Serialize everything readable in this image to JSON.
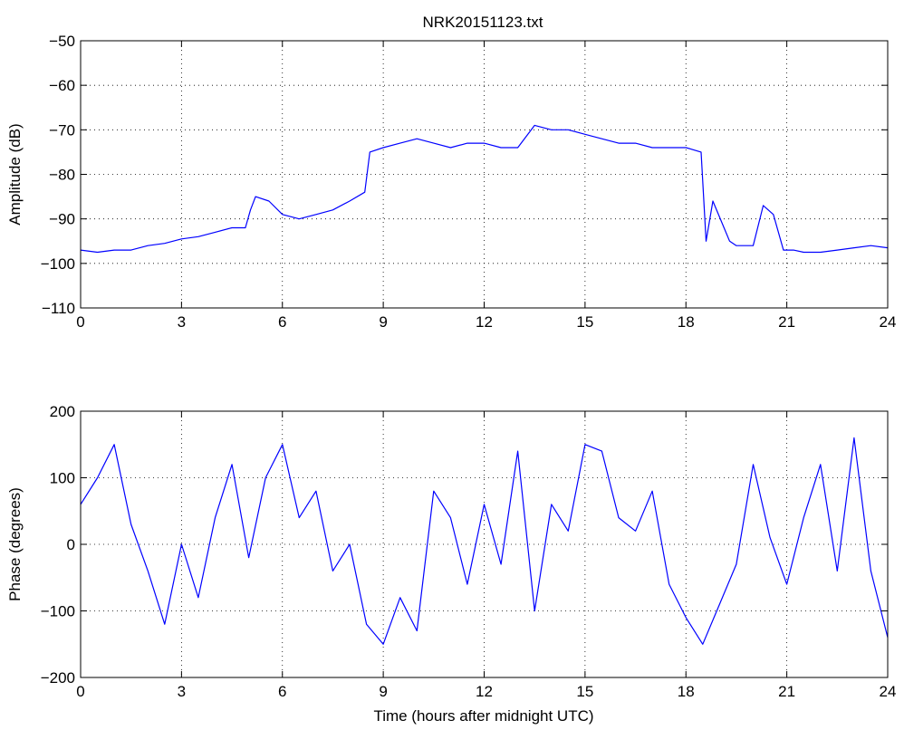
{
  "chart_data": [
    {
      "type": "line",
      "title": "NRK20151123.txt",
      "xlabel": "",
      "ylabel": "Amplitude (dB)",
      "xlim": [
        0,
        24
      ],
      "ylim": [
        -110,
        -50
      ],
      "xticks": [
        0,
        3,
        6,
        9,
        12,
        15,
        18,
        21,
        24
      ],
      "yticks": [
        -110,
        -100,
        -90,
        -80,
        -70,
        -60,
        -50
      ],
      "xtick_labels": [
        "0",
        "3",
        "6",
        "9",
        "12",
        "15",
        "18",
        "21",
        "24"
      ],
      "ytick_labels": [
        "−110",
        "−100",
        "−90",
        "−80",
        "−70",
        "−60",
        "−50"
      ],
      "grid": true,
      "line_color": "#0000ff",
      "series": [
        {
          "x": [
            0,
            0.5,
            1.0,
            1.5,
            2.0,
            2.5,
            3.0,
            3.5,
            4.0,
            4.5,
            4.9,
            5.05,
            5.2,
            5.6,
            6.0,
            6.5,
            7.0,
            7.5,
            8.0,
            8.45,
            8.6,
            9.0,
            9.5,
            10.0,
            10.5,
            11.0,
            11.5,
            12.0,
            12.5,
            13.0,
            13.5,
            14.0,
            14.5,
            15.0,
            15.5,
            16.0,
            16.5,
            17.0,
            17.5,
            18.0,
            18.45,
            18.6,
            18.8,
            19.3,
            19.5,
            20.0,
            20.3,
            20.6,
            20.9,
            21.2,
            21.5,
            22.0,
            22.5,
            23.0,
            23.5,
            24.0
          ],
          "values": [
            -97,
            -97.5,
            -97,
            -97,
            -96,
            -95.5,
            -94.5,
            -94,
            -93,
            -92,
            -92,
            -88,
            -85,
            -86,
            -89,
            -90,
            -89,
            -88,
            -86,
            -84,
            -75,
            -74,
            -73,
            -72,
            -73,
            -74,
            -73,
            -73,
            -74,
            -74,
            -69,
            -70,
            -70,
            -71,
            -72,
            -73,
            -73,
            -74,
            -74,
            -74,
            -75,
            -95,
            -86,
            -95,
            -96,
            -96,
            -87,
            -89,
            -97,
            -97,
            -97.5,
            -97.5,
            -97,
            -96.5,
            -96,
            -96.5
          ]
        }
      ]
    },
    {
      "type": "line",
      "title": "",
      "xlabel": "Time (hours after midnight UTC)",
      "ylabel": "Phase (degrees)",
      "xlim": [
        0,
        24
      ],
      "ylim": [
        -200,
        200
      ],
      "xticks": [
        0,
        3,
        6,
        9,
        12,
        15,
        18,
        21,
        24
      ],
      "yticks": [
        -200,
        -100,
        0,
        100,
        200
      ],
      "xtick_labels": [
        "0",
        "3",
        "6",
        "9",
        "12",
        "15",
        "18",
        "21",
        "24"
      ],
      "ytick_labels": [
        "−200",
        "−100",
        "0",
        "100",
        "200"
      ],
      "grid": true,
      "line_color": "#0000ff",
      "series": [
        {
          "x": [
            0,
            0.5,
            1.0,
            1.5,
            2.0,
            2.5,
            3.0,
            3.5,
            4.0,
            4.5,
            5.0,
            5.5,
            6.0,
            6.5,
            7.0,
            7.5,
            8.0,
            8.5,
            9.0,
            9.5,
            10.0,
            10.5,
            11.0,
            11.5,
            12.0,
            12.5,
            13.0,
            13.5,
            14.0,
            14.5,
            15.0,
            15.5,
            16.0,
            16.5,
            17.0,
            17.5,
            18.0,
            18.5,
            19.0,
            19.5,
            20.0,
            20.5,
            21.0,
            21.5,
            22.0,
            22.5,
            23.0,
            23.5,
            24.0
          ],
          "values": [
            60,
            100,
            150,
            30,
            -40,
            -120,
            0,
            -80,
            40,
            120,
            -20,
            100,
            150,
            40,
            80,
            -40,
            0,
            -120,
            -150,
            -80,
            -130,
            80,
            40,
            -60,
            60,
            -30,
            140,
            -100,
            60,
            20,
            150,
            140,
            40,
            20,
            80,
            -60,
            -110,
            -150,
            -90,
            -30,
            120,
            10,
            -60,
            40,
            120,
            -40,
            160,
            -40,
            -140
          ]
        }
      ]
    }
  ]
}
